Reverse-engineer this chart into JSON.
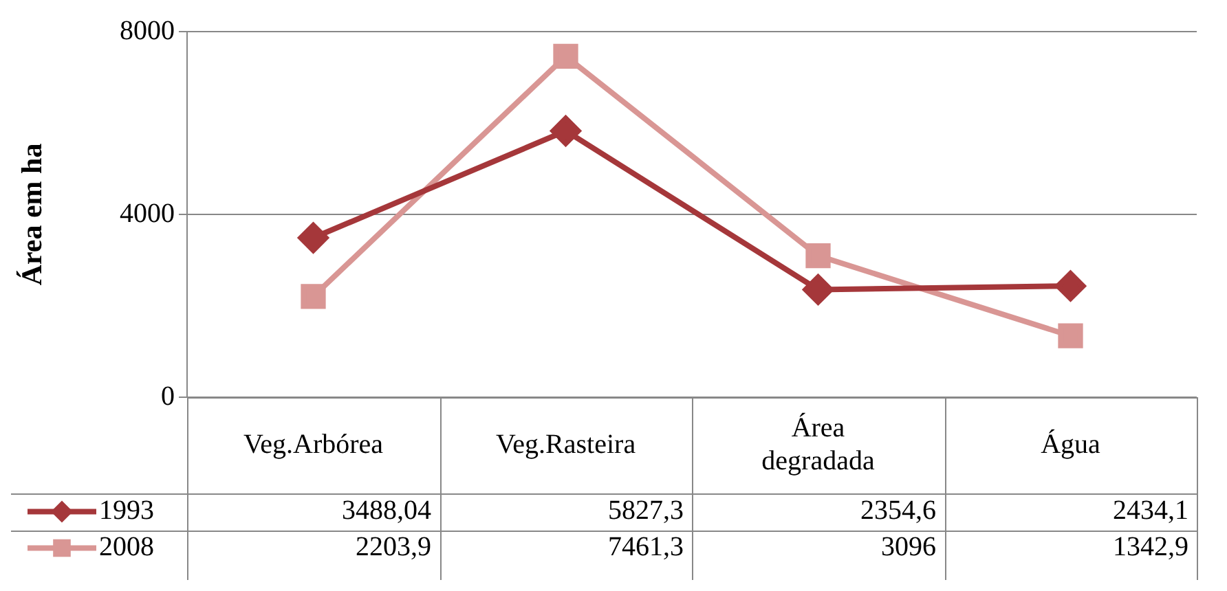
{
  "chart_data": {
    "type": "line",
    "ylabel": "Área em ha",
    "categories": [
      "Veg.Arbórea",
      "Veg.Rasteira",
      "Área degradada",
      "Água"
    ],
    "series": [
      {
        "name": "1993",
        "color": "#a5373a",
        "marker": "diamond",
        "values": [
          3488.04,
          5827.3,
          2354.6,
          2434.1
        ],
        "value_labels": [
          "3488,04",
          "5827,3",
          "2354,6",
          "2434,1"
        ]
      },
      {
        "name": "2008",
        "color": "#d99694",
        "marker": "square",
        "values": [
          2203.9,
          7461.3,
          3096,
          1342.9
        ],
        "value_labels": [
          "2203,9",
          "7461,3",
          "3096",
          "1342,9"
        ]
      }
    ],
    "ylim": [
      0,
      8000
    ],
    "yticks": [
      0,
      4000,
      8000
    ],
    "grid": "y",
    "legend": "bottom left",
    "line_style": "solid"
  }
}
